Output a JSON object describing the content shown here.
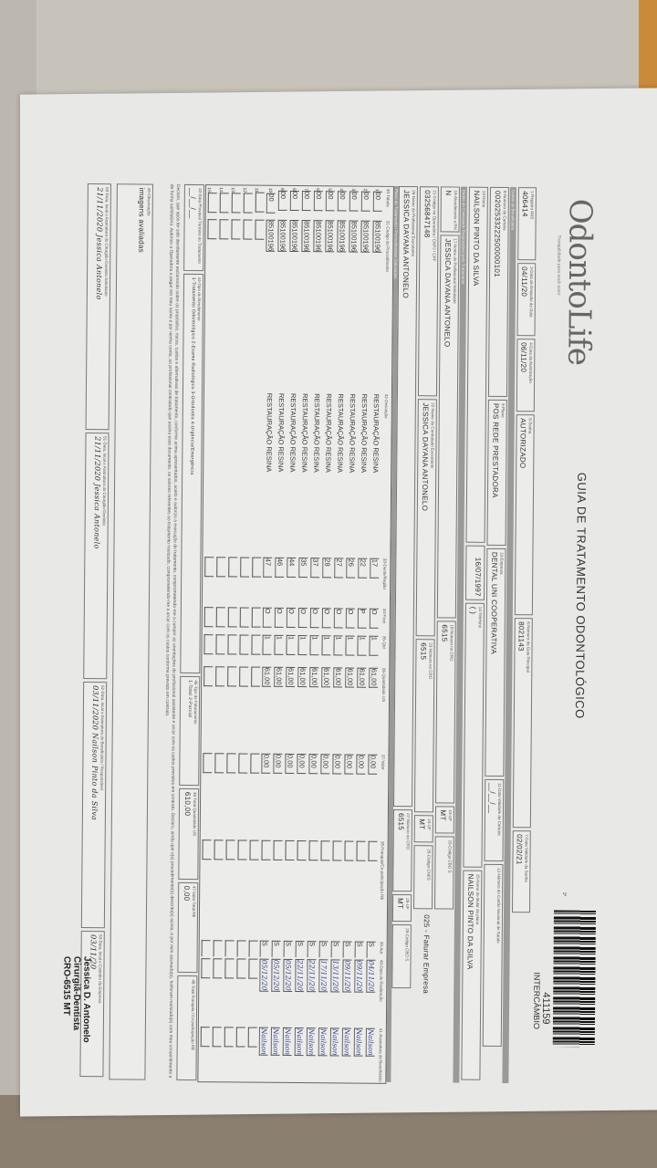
{
  "header": {
    "logo": "OdontoLife",
    "logo_tagline": "Tranquilidade para você sorrir",
    "title": "GUIA DE TRATAMENTO ODONTOLÓGICO",
    "via": "1ª",
    "barcode_number": "411159",
    "guide_type": "INTERCÂMBIO"
  },
  "fields": {
    "registro_ans": {
      "label": "1-Registro ANS",
      "value": "406414"
    },
    "data_emissao": {
      "label": "3-Data de Emissão da Guia",
      "value": "04/11/20"
    },
    "data_autorizacao": {
      "label": "4-Data da Autorização",
      "value": "06/11/20"
    },
    "senha": {
      "label": "5-Senha",
      "value": "AUTORIZADO"
    },
    "guia_principal": {
      "label": "6-Número da Guia Principal",
      "value": "8021143"
    },
    "validade_senha": {
      "label": "7-Data Validade da Senha",
      "value": "02/02/21"
    },
    "carteira": {
      "label": "8-Número da Carteira",
      "value": "00202533222500000101"
    },
    "plano": {
      "label": "9-Plano",
      "value": "POS REDE PRESTADORA"
    },
    "empresa": {
      "label": "10-Empresa",
      "value": "DENTAL UNI COOPERATIVA"
    },
    "validade_carteira": {
      "label": "11-Data Validade da Carteira",
      "value": "__/__/__"
    },
    "cartao_nacional": {
      "label": "12-Número do Cartão Nacional de Saúde",
      "value": ""
    },
    "nome": {
      "label": "13-Nome",
      "value": "NAILSON PINTO DA SILVA"
    },
    "data_nascimento": {
      "label": "",
      "value": "16/07/1997"
    },
    "telefone": {
      "label": "14-Telefone",
      "value": "(   )"
    },
    "titular": {
      "label": "15-Nome do titular do plano",
      "value": "NAILSON PINTO DA SILVA"
    },
    "atendimento_rn": {
      "label": "16-Atendimento a RN",
      "value": "N"
    },
    "prof_solicitante": {
      "label": "17-Nome do Profissional Solicitante",
      "value": "JESSICA DAYANA ANTONELO"
    },
    "cro_solicitante": {
      "label": "18-Número no CRO",
      "value": "6515"
    },
    "uf_solicitante": {
      "label": "19-UF",
      "value": "MT"
    },
    "cbo_solicitante": {
      "label": "20-Código CBO S",
      "value": ""
    },
    "cod_operadora": {
      "label": "21-Código na Operadora / CNPJ / CPF",
      "value": "03256847148"
    },
    "contratado": {
      "label": "22-Nome do Contratado Executante",
      "value": "JESSICA DAYANA ANTONELO"
    },
    "cro_contratado": {
      "label": "23-Número no CRO",
      "value": "6515"
    },
    "uf_contratado": {
      "label": "24-UF",
      "value": "MT"
    },
    "cnes": {
      "label": "25-Código CNES",
      "value": ""
    },
    "faturamento": {
      "label": "",
      "value": "025 - Faturar Empresa"
    },
    "prof_executante": {
      "label": "26-Nome do Profissional Executante",
      "value": "JESSICA DAYANA ANTONELO"
    },
    "cro_executante": {
      "label": "27-Número no CRO",
      "value": "6515"
    },
    "uf_executante": {
      "label": "28-UF",
      "value": "MT"
    },
    "cbo_executante": {
      "label": "29-Código CBO S",
      "value": ""
    }
  },
  "sections": {
    "beneficiario": "Dados do Beneficiário",
    "contratado": "Dados do Contratado Responsável pelo Tratamento",
    "plano": "Plano de Tratamento / Procedimentos Solicitados"
  },
  "table": {
    "columns": [
      "30-Tabela",
      "31-Código do Procedimento",
      "32-Descrição",
      "33-Dente/Região",
      "34-Face",
      "35-Qtd",
      "36-Quantidade US",
      "37-Valor",
      "38-Franquia/Co-participação R$",
      "39-Aut",
      "40-Data de Realização",
      "41-Assinatura do Beneficiário"
    ],
    "rows": [
      {
        "n": "1",
        "tabela": "00",
        "codigo": "85100196",
        "descricao": "RESTAURAÇÃO RESINA",
        "dente": "17",
        "face": "O",
        "qtd": "1",
        "us": "61,00",
        "valor": "0,00",
        "aut": "S",
        "data": "04/11/20",
        "assinatura": "Nailson"
      },
      {
        "n": "2",
        "tabela": "00",
        "codigo": "85100196",
        "descricao": "RESTAURAÇÃO RESINA",
        "dente": "22",
        "face": "P",
        "qtd": "1",
        "us": "61,00",
        "valor": "0,00",
        "aut": "S",
        "data": "09/11/20",
        "assinatura": "Nailson"
      },
      {
        "n": "3",
        "tabela": "00",
        "codigo": "85100196",
        "descricao": "RESTAURAÇÃO RESINA",
        "dente": "26",
        "face": "O",
        "qtd": "1",
        "us": "61,00",
        "valor": "0,00",
        "aut": "S",
        "data": "09/11/20",
        "assinatura": "Nailson"
      },
      {
        "n": "4",
        "tabela": "00",
        "codigo": "85100196",
        "descricao": "RESTAURAÇÃO RESINA",
        "dente": "27",
        "face": "O",
        "qtd": "1",
        "us": "61,00",
        "valor": "0,00",
        "aut": "S",
        "data": "13/11/20",
        "assinatura": "Nailson"
      },
      {
        "n": "5",
        "tabela": "00",
        "codigo": "85100196",
        "descricao": "RESTAURAÇÃO RESINA",
        "dente": "28",
        "face": "O",
        "qtd": "1",
        "us": "61,00",
        "valor": "0,00",
        "aut": "S",
        "data": "17/11/20",
        "assinatura": "Nailson"
      },
      {
        "n": "6",
        "tabela": "00",
        "codigo": "85100196",
        "descricao": "RESTAURAÇÃO RESINA",
        "dente": "37",
        "face": "O",
        "qtd": "1",
        "us": "61,00",
        "valor": "0,00",
        "aut": "S",
        "data": "22/11/20",
        "assinatura": "Nailson"
      },
      {
        "n": "7",
        "tabela": "00",
        "codigo": "85100196",
        "descricao": "RESTAURAÇÃO RESINA",
        "dente": "35",
        "face": "O",
        "qtd": "1",
        "us": "61,00",
        "valor": "0,00",
        "aut": "S",
        "data": "22/11/20",
        "assinatura": "Nailson"
      },
      {
        "n": "8",
        "tabela": "00",
        "codigo": "85100196",
        "descricao": "RESTAURAÇÃO RESINA",
        "dente": "44",
        "face": "O",
        "qtd": "1",
        "us": "61,00",
        "valor": "0,00",
        "aut": "S",
        "data": "05/12/20",
        "assinatura": "Nailson"
      },
      {
        "n": "9",
        "tabela": "00",
        "codigo": "85100196",
        "descricao": "RESTAURAÇÃO RESINA",
        "dente": "46",
        "face": "O",
        "qtd": "1",
        "us": "61,00",
        "valor": "0,00",
        "aut": "S",
        "data": "05/12/20",
        "assinatura": "Nailson"
      },
      {
        "n": "10",
        "tabela": "00",
        "codigo": "85100196",
        "descricao": "RESTAURAÇÃO RESINA",
        "dente": "47",
        "face": "O",
        "qtd": "1",
        "us": "61,00",
        "valor": "0,00",
        "aut": "S",
        "data": "05/12/20",
        "assinatura": "Nailson"
      },
      {
        "n": "11"
      },
      {
        "n": "12"
      },
      {
        "n": "13"
      },
      {
        "n": "14"
      },
      {
        "n": "15"
      }
    ]
  },
  "totals": {
    "termino": {
      "label": "43-Data Provável Término do Tratamento",
      "value": "__/__/__"
    },
    "tipo_atendimento": {
      "label": "44-Tipo de Atendimento",
      "value": "1-Tratamento Odontológico 2-Exame Radiológico 3-Ortodontia 4-Urgência/Emergência"
    },
    "tipo_faturamento": {
      "label": "45-Tipo de Faturamento",
      "value": "1-Total 2-Parcial"
    },
    "total_us": {
      "label": "46-Total Quantidade US",
      "value": "610,00"
    },
    "valor_total": {
      "label": "47-Valor Total R$",
      "value": "0,00"
    },
    "total_franquia": {
      "label": "48-Total Franquia / Co-participação R$",
      "value": ""
    }
  },
  "declaration": "Declaro, que após ter sido devidamente esclarecido sobre os propósitos, riscos, custos e alternativas de tratamento, conforme acima apresentados, aceito e autorizo a execução do tratamento, comprometendo-me a cumprir as orientações do profissional assistente e arcar com os custos previstos em contrato. Declaro, ainda que o(s) procedimento(s) descrito(s) acima, e por mim assinado(s), foi/foram realizado(s) com meu consentimento e de forma satisfatória. Autorizo a Operadora a pagar em meu nome e por minha conta, ao profissional contratado que assina esse documento, os valores referentes ao tratamento realizado, comprometendo-me a arcar com os custos conforme previsto em contrato.",
  "observacao": {
    "label": "49-Observação",
    "value": "imagens avaliadas"
  },
  "signatures": {
    "cirurgiao_solicitante": {
      "label": "50-Data, local e Assinatura do Cirurgião-Dentista Solicitante",
      "value": "21/11/2020 Jessica Antonelo"
    },
    "cirurgiao_dentista": {
      "label": "51-Data, local e Assinatura do Cirurgião-Dentista",
      "value": "21/11/2020 Jessica Antonelo"
    },
    "beneficiario": {
      "label": "52-Data, local e Assinatura do Beneficiário / Responsável",
      "value": "03/11/2020 Nailson Pinto da Silva"
    },
    "empresa": {
      "label": "53-Data, local e Carimbo da Empresa",
      "value": "03/11/20"
    }
  },
  "stamp": {
    "line1": "Jessica D. Antonelo",
    "line2": "Cirurgiã-Dentista",
    "line3": "CRO-6515 MT"
  }
}
